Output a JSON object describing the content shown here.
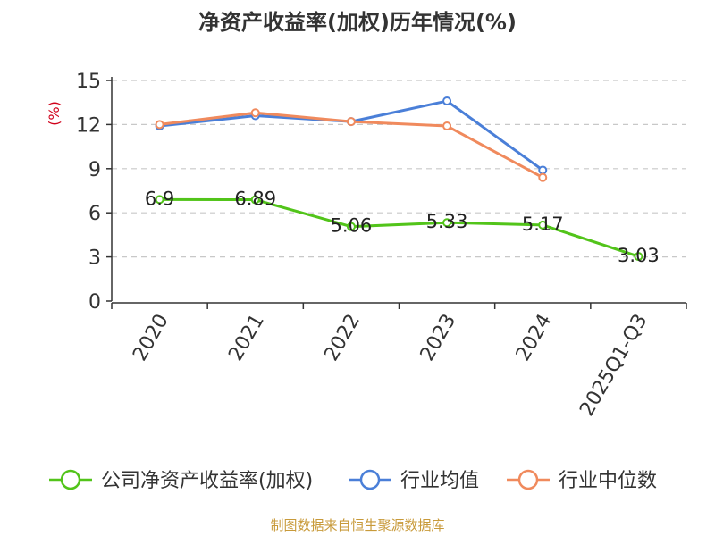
{
  "chart_data": {
    "type": "line",
    "title": "净资产收益率(加权)历年情况(%)",
    "ylabel": "(%)",
    "xlabel": "",
    "categories": [
      "2020",
      "2021",
      "2022",
      "2023",
      "2024",
      "2025Q1-Q3"
    ],
    "ylim": [
      0,
      15
    ],
    "yticks": [
      0,
      3,
      6,
      9,
      12,
      15
    ],
    "grid": true,
    "legend_position": "bottom",
    "series": [
      {
        "name": "公司净资产收益率(加权)",
        "color": "#52c41a",
        "values": [
          6.9,
          6.89,
          5.06,
          5.33,
          5.17,
          3.03
        ],
        "labels": [
          "6.9",
          "6.89",
          "5.06",
          "5.33",
          "5.17",
          "3.03"
        ]
      },
      {
        "name": "行业均值",
        "color": "#4a7fd8",
        "values": [
          11.9,
          12.6,
          12.2,
          13.6,
          8.9,
          null
        ]
      },
      {
        "name": "行业中位数",
        "color": "#f08a5d",
        "values": [
          12.0,
          12.8,
          12.2,
          11.9,
          8.4,
          null
        ]
      }
    ]
  },
  "footer": {
    "source": "制图数据来自恒生聚源数据库"
  },
  "colors": {
    "title": "#333333",
    "ylabel": "#d0021b",
    "footer": "#c89a3a",
    "axis": "#333333",
    "grid": "#c8c8c8"
  }
}
